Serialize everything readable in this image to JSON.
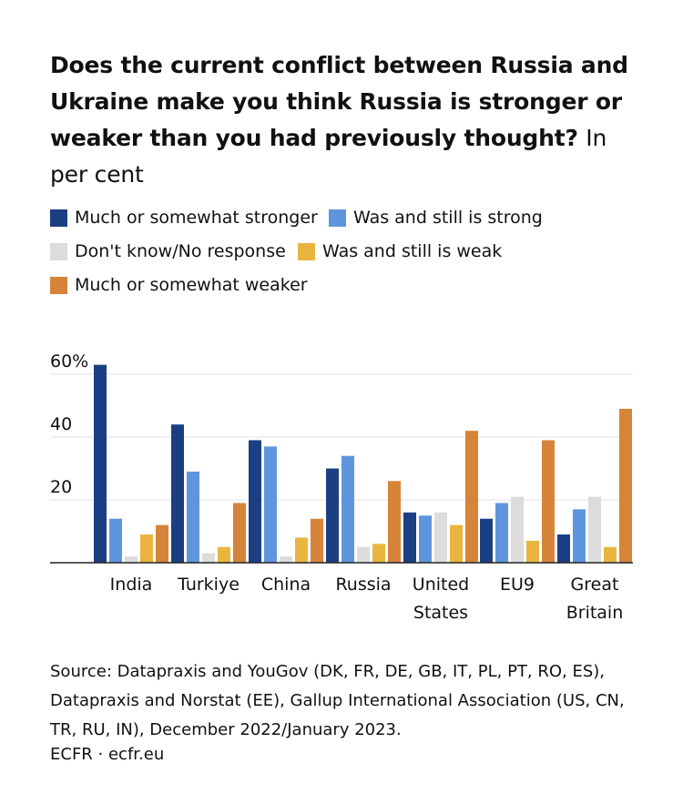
{
  "title": {
    "bold": "Does the current conflict between Russia and Ukraine make you think Russia is stronger or weaker than you had previously thought?",
    "unit": "In per cent"
  },
  "legend": [
    {
      "label": "Much or somewhat stronger",
      "color": "#1b3f82"
    },
    {
      "label": "Was and still is strong",
      "color": "#5f95dd"
    },
    {
      "label": "Don't know/No response",
      "color": "#dcdcdc"
    },
    {
      "label": "Was and still is weak",
      "color": "#e9b53f"
    },
    {
      "label": "Much or somewhat weaker",
      "color": "#d5843a"
    }
  ],
  "chart_data": {
    "type": "bar",
    "categories": [
      [
        "India"
      ],
      [
        "Turkiye"
      ],
      [
        "China"
      ],
      [
        "Russia"
      ],
      [
        "United",
        "States"
      ],
      [
        "EU9"
      ],
      [
        "Great",
        "Britain"
      ]
    ],
    "series": [
      {
        "name": "Much or somewhat stronger",
        "color": "#1b3f82",
        "values": [
          63,
          44,
          39,
          30,
          16,
          14,
          9
        ]
      },
      {
        "name": "Was and still is strong",
        "color": "#5f95dd",
        "values": [
          14,
          29,
          37,
          34,
          15,
          19,
          17
        ]
      },
      {
        "name": "Don't know/No response",
        "color": "#dcdcdc",
        "values": [
          2,
          3,
          2,
          5,
          16,
          21,
          21
        ]
      },
      {
        "name": "Was and still is weak",
        "color": "#e9b53f",
        "values": [
          9,
          5,
          8,
          6,
          12,
          7,
          5
        ]
      },
      {
        "name": "Much or somewhat weaker",
        "color": "#d5843a",
        "values": [
          12,
          19,
          14,
          26,
          42,
          39,
          49
        ]
      }
    ],
    "yticks": [
      {
        "value": 20,
        "label": "20"
      },
      {
        "value": 40,
        "label": "40"
      },
      {
        "value": 60,
        "label": "60%"
      }
    ],
    "ylim": [
      0,
      63
    ],
    "grid": true,
    "legend_position": "top"
  },
  "source": "Source: Datapraxis and YouGov (DK, FR, DE, GB, IT, PL, PT, RO, ES), Datapraxis and Norstat (EE), Gallup International Association (US, CN, TR, RU, IN), December 2022/January 2023.",
  "credit": "ECFR · ecfr.eu"
}
